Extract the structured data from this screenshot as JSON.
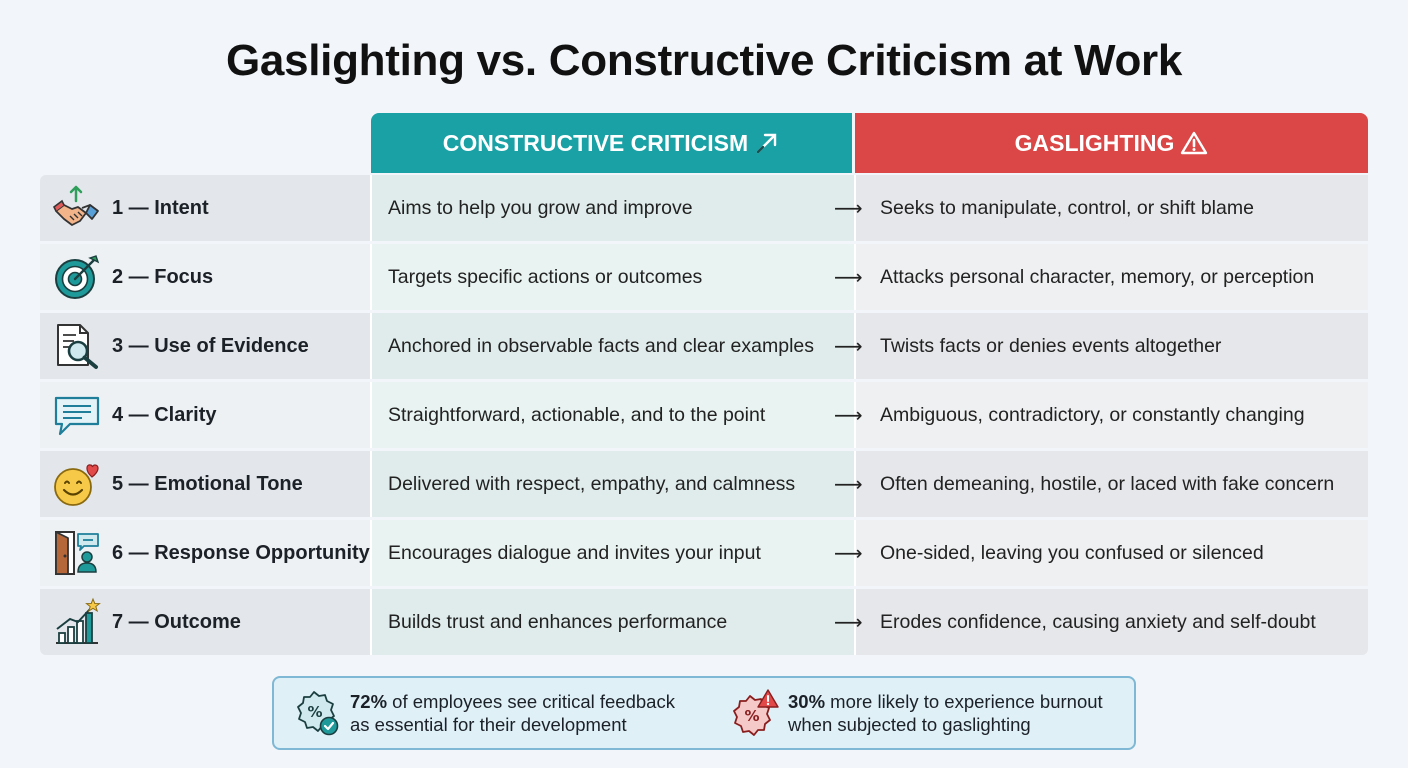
{
  "title": "Gaslighting vs. Constructive Criticism at Work",
  "columns": {
    "constructive": "CONSTRUCTIVE CRITICISM",
    "gaslighting": "GASLIGHTING"
  },
  "arrow_glyph": "⟶",
  "rows": [
    {
      "label": "1 — Intent",
      "icon": "handshake-icon",
      "constructive": "Aims to help you grow and improve",
      "gaslighting": "Seeks to manipulate, control, or shift blame"
    },
    {
      "label": "2 — Focus",
      "icon": "target-icon",
      "constructive": "Targets specific actions or outcomes",
      "gaslighting": "Attacks personal character, memory, or perception"
    },
    {
      "label": "3 — Use of Evidence",
      "icon": "document-search-icon",
      "constructive": "Anchored in observable facts and clear examples",
      "gaslighting": "Twists facts or denies events altogether"
    },
    {
      "label": "4 — Clarity",
      "icon": "speech-bubble-icon",
      "constructive": "Straightforward, actionable, and to the point",
      "gaslighting": "Ambiguous, contradictory, or constantly changing"
    },
    {
      "label": "5 — Emotional Tone",
      "icon": "smiley-heart-icon",
      "constructive": "Delivered with respect, empathy, and calmness",
      "gaslighting": "Often demeaning, hostile, or laced with fake concern"
    },
    {
      "label": "6 — Response Opportunity",
      "icon": "door-chat-icon",
      "constructive": "Encourages dialogue and invites your input",
      "gaslighting": "One-sided, leaving you confused or silenced"
    },
    {
      "label": "7 — Outcome",
      "icon": "growth-chart-icon",
      "constructive": "Builds trust and enhances performance",
      "gaslighting": "Erodes confidence, causing anxiety and self-doubt"
    }
  ],
  "stats": [
    {
      "highlight": "72%",
      "line1": " of employees see critical feedback",
      "line2": "as essential for their development",
      "icon": "percent-badge-check-icon"
    },
    {
      "highlight": "30%",
      "line1": " more likely to experience burnout",
      "line2": "when subjected to gaslighting",
      "icon": "percent-badge-warning-icon"
    }
  ],
  "colors": {
    "constructive_header": "#1aa1a5",
    "gaslighting_header": "#db4646",
    "icon_teal": "#1f9a9a",
    "icon_red": "#e15a5a"
  }
}
